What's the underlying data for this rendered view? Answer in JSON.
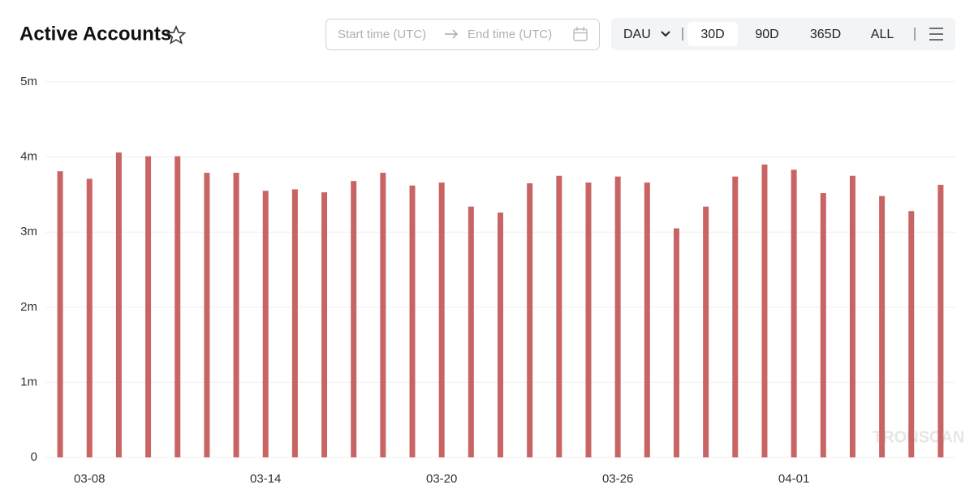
{
  "chart_data": {
    "type": "bar",
    "title": "Active Accounts",
    "categories": [
      null,
      "03-08",
      null,
      null,
      null,
      null,
      null,
      "03-14",
      null,
      null,
      null,
      null,
      null,
      "03-20",
      null,
      null,
      null,
      null,
      null,
      "03-26",
      null,
      null,
      null,
      null,
      null,
      "04-01",
      null,
      null,
      null,
      null,
      null
    ],
    "values": [
      3810000,
      3710000,
      4060000,
      4010000,
      4010000,
      3790000,
      3790000,
      3550000,
      3570000,
      3530000,
      3680000,
      3790000,
      3620000,
      3660000,
      3340000,
      3260000,
      3650000,
      3750000,
      3660000,
      3740000,
      3660000,
      3050000,
      3340000,
      3740000,
      3900000,
      3830000,
      3520000,
      3750000,
      3480000,
      3280000,
      3630000
    ],
    "color": "#c96464",
    "ylim": [
      0,
      5000000
    ],
    "yticks": [
      0,
      {
        "value": 1000000,
        "label": "1m"
      },
      {
        "value": 2000000,
        "label": "2m"
      },
      {
        "value": 3000000,
        "label": "3m"
      },
      {
        "value": 4000000,
        "label": "4m"
      },
      {
        "value": 5000000,
        "label": "5m"
      }
    ],
    "grid": true,
    "watermark": "TRONSCAN"
  },
  "controls": {
    "start_placeholder": "Start time (UTC)",
    "end_placeholder": "End time (UTC)",
    "metric": "DAU",
    "ranges": [
      "30D",
      "90D",
      "365D",
      "ALL"
    ],
    "selected_range": "30D"
  }
}
